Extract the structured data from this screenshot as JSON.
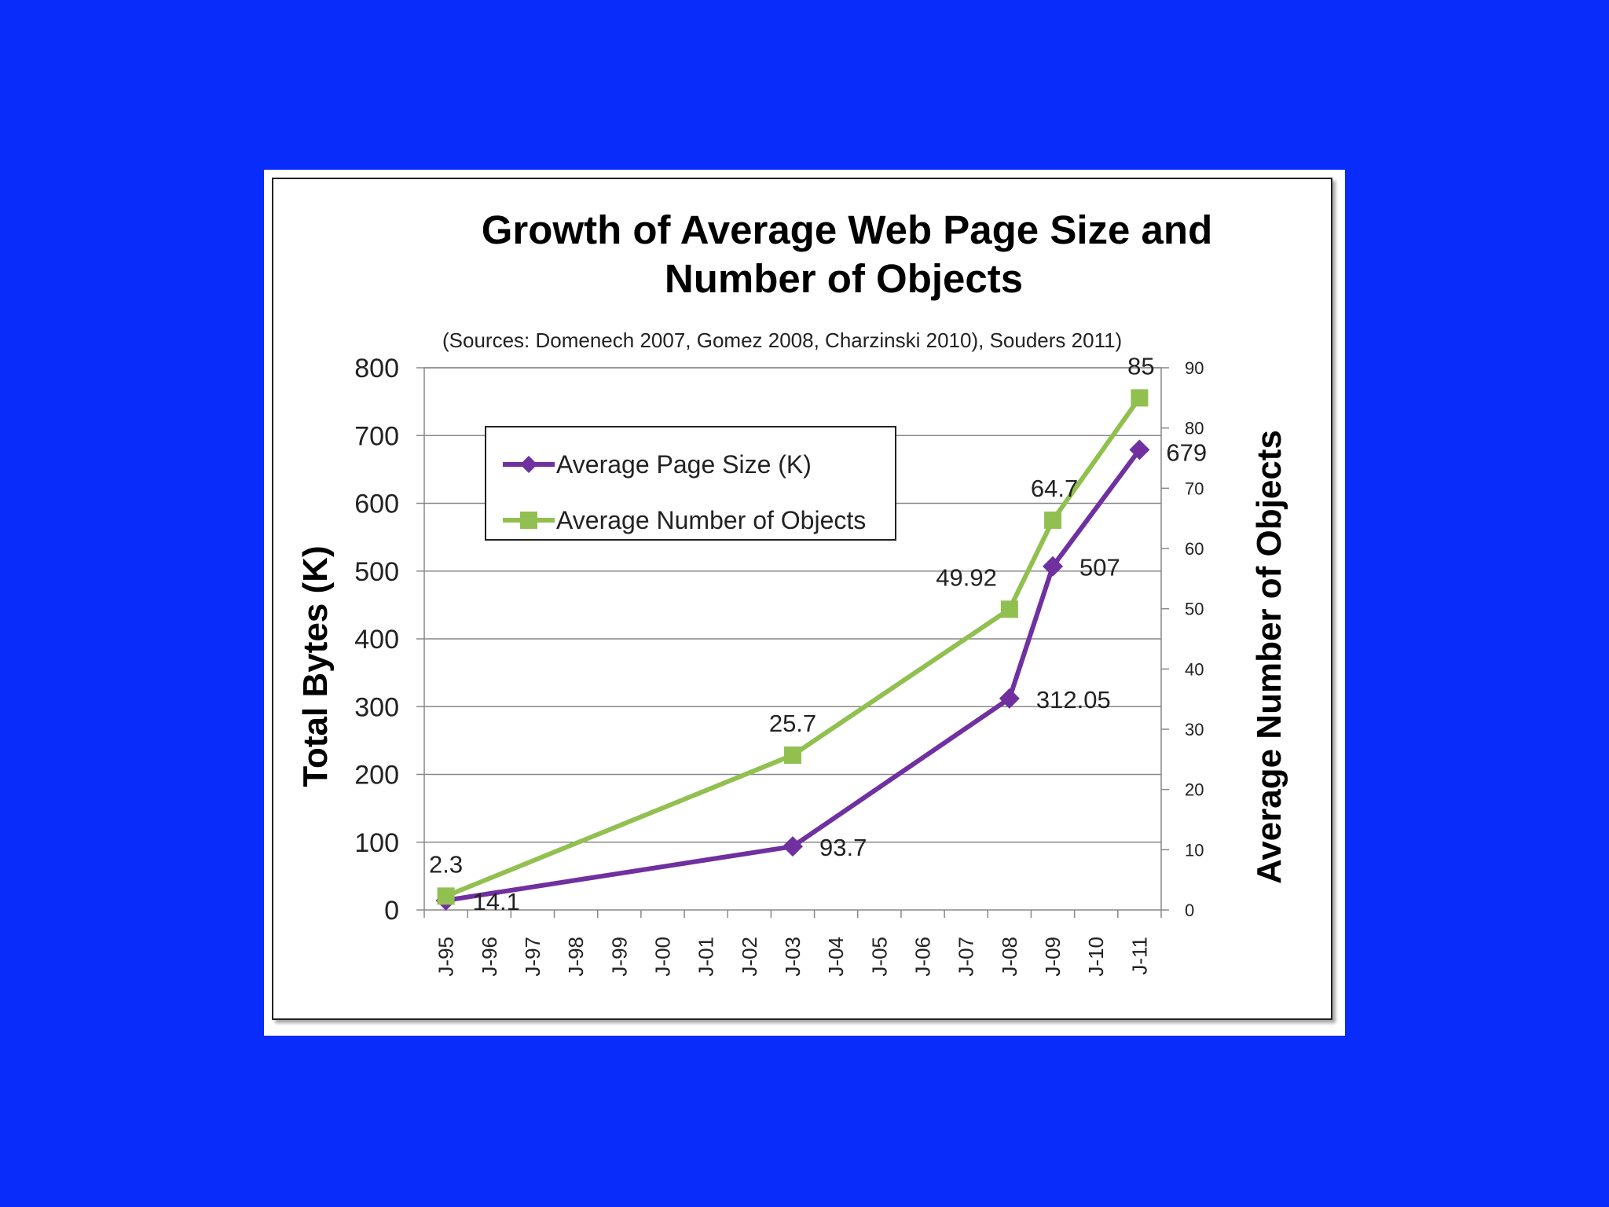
{
  "slide": {
    "background": "#0a2cfa"
  },
  "chart_data": {
    "type": "line",
    "title_line1": "Growth of Average  Web Page Size and",
    "title_line2": "Number of Objects",
    "subtitle": "(Sources: Domenech 2007, Gomez 2008, Charzinski 2010), Souders 2011)",
    "ylabel": "Total Bytes (K)",
    "y2label": "Average Number of Objects",
    "categories": [
      "J-95",
      "J-96",
      "J-97",
      "J-98",
      "J-99",
      "J-00",
      "J-01",
      "J-02",
      "J-03",
      "J-04",
      "J-05",
      "J-06",
      "J-07",
      "J-08",
      "J-09",
      "J-10",
      "J-11"
    ],
    "ylim": [
      0,
      800
    ],
    "yticks": [
      "0",
      "100",
      "200",
      "300",
      "400",
      "500",
      "600",
      "700",
      "800"
    ],
    "y2lim": [
      0,
      90
    ],
    "y2ticks": [
      "0",
      "10",
      "20",
      "30",
      "40",
      "50",
      "60",
      "70",
      "80",
      "90"
    ],
    "grid": true,
    "legend_position": "top-left inside plot",
    "series": [
      {
        "name": "Average Page Size (K)",
        "axis": "left",
        "color": "#7030a0",
        "marker": "diamond",
        "points": [
          {
            "x": "J-95",
            "y": 14.1,
            "label": "14.1"
          },
          {
            "x": "J-03",
            "y": 93.7,
            "label": "93.7"
          },
          {
            "x": "J-08",
            "y": 312.05,
            "label": "312.05"
          },
          {
            "x": "J-09",
            "y": 507,
            "label": "507"
          },
          {
            "x": "J-11",
            "y": 679,
            "label": "679"
          }
        ]
      },
      {
        "name": "Average Number of Objects",
        "axis": "right",
        "color": "#92c050",
        "marker": "square",
        "points": [
          {
            "x": "J-95",
            "y": 2.3,
            "label": "2.3"
          },
          {
            "x": "J-03",
            "y": 25.7,
            "label": "25.7"
          },
          {
            "x": "J-08",
            "y": 49.92,
            "label": "49.92"
          },
          {
            "x": "J-09",
            "y": 64.7,
            "label": "64.7"
          },
          {
            "x": "J-11",
            "y": 85,
            "label": "85"
          }
        ]
      }
    ]
  }
}
